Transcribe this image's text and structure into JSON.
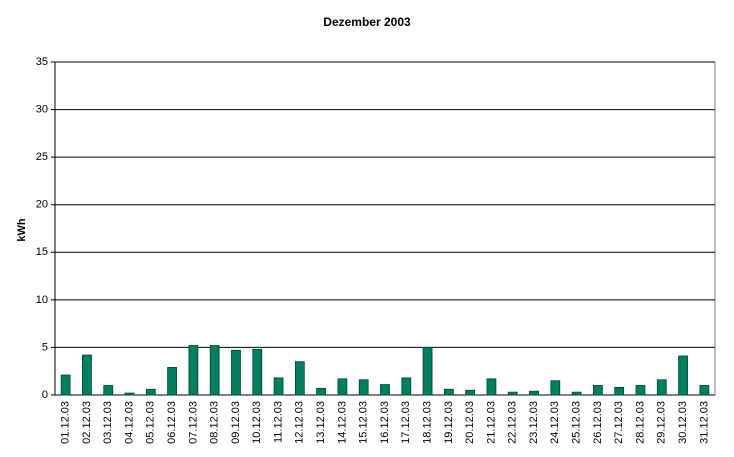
{
  "chart_data": {
    "type": "bar",
    "title": "Dezember 2003",
    "y_label": "kWh",
    "categories": [
      "01.12.03",
      "02.12.03",
      "03.12.03",
      "04.12.03",
      "05.12.03",
      "06.12.03",
      "07.12.03",
      "08.12.03",
      "09.12.03",
      "10.12.03",
      "11.12.03",
      "12.12.03",
      "13.12.03",
      "14.12.03",
      "15.12.03",
      "16.12.03",
      "17.12.03",
      "18.12.03",
      "19.12.03",
      "20.12.03",
      "21.12.03",
      "22.12.03",
      "23.12.03",
      "24.12.03",
      "25.12.03",
      "26.12.03",
      "27.12.03",
      "28.12.03",
      "29.12.03",
      "30.12.03",
      "31.12.03"
    ],
    "values": [
      2.1,
      4.2,
      1.0,
      0.2,
      0.6,
      2.9,
      5.2,
      5.2,
      4.7,
      4.8,
      1.8,
      3.5,
      0.7,
      1.7,
      1.6,
      1.1,
      1.8,
      5.0,
      0.6,
      0.5,
      1.7,
      0.3,
      0.4,
      1.5,
      0.3,
      1.0,
      0.8,
      1.0,
      1.6,
      4.1,
      1.0
    ],
    "color": "#008060",
    "ylim": [
      0,
      35
    ],
    "yticks": [
      0,
      5,
      10,
      15,
      20,
      25,
      30,
      35
    ],
    "grid": true
  }
}
